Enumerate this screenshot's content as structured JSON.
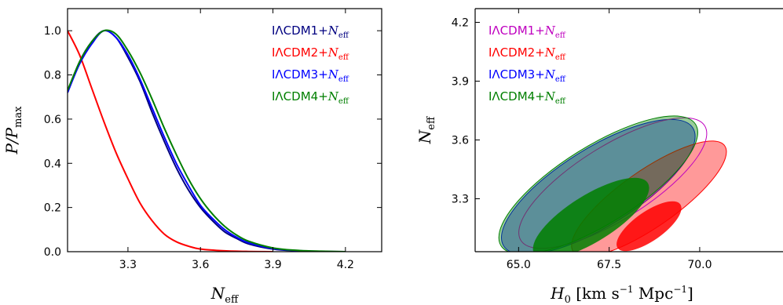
{
  "chart_data": [
    {
      "type": "line",
      "xlabel": "N_eff",
      "ylabel": "P/P_max",
      "xlim": [
        3.05,
        4.35
      ],
      "ylim": [
        0.0,
        1.1
      ],
      "xticks": [
        "3.3",
        "3.6",
        "3.9",
        "4.2"
      ],
      "yticks": [
        "0.0",
        "0.2",
        "0.4",
        "0.6",
        "0.8",
        "1.0"
      ],
      "legend_position": "top-right",
      "series": [
        {
          "name": "IΛCDM1+N_eff",
          "color": "#000080",
          "points": [
            [
              3.05,
              0.72
            ],
            [
              3.1,
              0.86
            ],
            [
              3.15,
              0.95
            ],
            [
              3.2,
              1.0
            ],
            [
              3.25,
              0.97
            ],
            [
              3.3,
              0.88
            ],
            [
              3.35,
              0.77
            ],
            [
              3.4,
              0.63
            ],
            [
              3.45,
              0.5
            ],
            [
              3.5,
              0.38
            ],
            [
              3.55,
              0.28
            ],
            [
              3.6,
              0.2
            ],
            [
              3.65,
              0.14
            ],
            [
              3.7,
              0.09
            ],
            [
              3.75,
              0.06
            ],
            [
              3.8,
              0.035
            ],
            [
              3.9,
              0.012
            ],
            [
              4.0,
              0.004
            ],
            [
              4.1,
              0.001
            ],
            [
              4.2,
              0.0
            ]
          ]
        },
        {
          "name": "IΛCDM2+N_eff",
          "color": "#ff0000",
          "points": [
            [
              3.05,
              1.0
            ],
            [
              3.1,
              0.89
            ],
            [
              3.15,
              0.74
            ],
            [
              3.2,
              0.59
            ],
            [
              3.25,
              0.45
            ],
            [
              3.3,
              0.33
            ],
            [
              3.35,
              0.22
            ],
            [
              3.4,
              0.14
            ],
            [
              3.45,
              0.08
            ],
            [
              3.5,
              0.045
            ],
            [
              3.55,
              0.025
            ],
            [
              3.6,
              0.012
            ],
            [
              3.7,
              0.004
            ],
            [
              3.8,
              0.001
            ],
            [
              3.9,
              0.0
            ]
          ]
        },
        {
          "name": "IΛCDM3+N_eff",
          "color": "#0000ff",
          "points": [
            [
              3.05,
              0.72
            ],
            [
              3.1,
              0.85
            ],
            [
              3.15,
              0.94
            ],
            [
              3.2,
              1.0
            ],
            [
              3.25,
              0.97
            ],
            [
              3.3,
              0.89
            ],
            [
              3.35,
              0.78
            ],
            [
              3.4,
              0.65
            ],
            [
              3.45,
              0.52
            ],
            [
              3.5,
              0.4
            ],
            [
              3.55,
              0.3
            ],
            [
              3.6,
              0.21
            ],
            [
              3.65,
              0.15
            ],
            [
              3.7,
              0.1
            ],
            [
              3.75,
              0.065
            ],
            [
              3.8,
              0.04
            ],
            [
              3.9,
              0.014
            ],
            [
              4.0,
              0.005
            ],
            [
              4.1,
              0.001
            ],
            [
              4.2,
              0.0
            ]
          ]
        },
        {
          "name": "IΛCDM4+N_eff",
          "color": "#007f00",
          "points": [
            [
              3.05,
              0.73
            ],
            [
              3.1,
              0.86
            ],
            [
              3.15,
              0.95
            ],
            [
              3.2,
              1.0
            ],
            [
              3.25,
              0.985
            ],
            [
              3.3,
              0.91
            ],
            [
              3.35,
              0.81
            ],
            [
              3.4,
              0.69
            ],
            [
              3.45,
              0.56
            ],
            [
              3.5,
              0.44
            ],
            [
              3.55,
              0.33
            ],
            [
              3.6,
              0.24
            ],
            [
              3.65,
              0.17
            ],
            [
              3.7,
              0.115
            ],
            [
              3.75,
              0.075
            ],
            [
              3.8,
              0.047
            ],
            [
              3.9,
              0.017
            ],
            [
              4.0,
              0.006
            ],
            [
              4.1,
              0.002
            ],
            [
              4.2,
              0.0
            ]
          ]
        }
      ]
    },
    {
      "type": "contour",
      "xlabel": "H_0 [km s^-1 Mpc^-1]",
      "ylabel": "N_eff",
      "xlim": [
        63.8,
        72.3
      ],
      "ylim": [
        3.03,
        4.27
      ],
      "xticks": [
        "65.0",
        "67.5",
        "70.0"
      ],
      "yticks": [
        "3.3",
        "3.6",
        "3.9",
        "4.2"
      ],
      "legend_position": "top-left",
      "series": [
        {
          "name": "IΛCDM1+N_eff",
          "color": "#bf00bf",
          "ellipse_95": {
            "center": [
              67.6,
              3.38
            ],
            "rx": 3.4,
            "ry": 0.38,
            "angle": -32
          }
        },
        {
          "name": "IΛCDM2+N_eff",
          "color": "#ff0000",
          "ellipse_95": {
            "center": [
              68.6,
              3.3
            ],
            "rx": 2.9,
            "ry": 0.29,
            "angle": -35
          },
          "ellipse_68": {
            "center": [
              68.6,
              3.16
            ],
            "rx": 1.2,
            "ry": 0.15,
            "angle": -35
          }
        },
        {
          "name": "IΛCDM3+N_eff",
          "color": "#0000ff",
          "ellipse_95": {
            "center": [
              67.2,
              3.36
            ],
            "rx": 3.5,
            "ry": 0.4,
            "angle": -32
          }
        },
        {
          "name": "IΛCDM4+N_eff",
          "color": "#007f00",
          "ellipse_95": {
            "center": [
              67.2,
              3.37
            ],
            "rx": 3.6,
            "ry": 0.4,
            "angle": -32
          },
          "ellipse_68": {
            "center": [
              67.0,
              3.2
            ],
            "rx": 2.1,
            "ry": 0.24,
            "angle": -32
          }
        }
      ]
    }
  ]
}
